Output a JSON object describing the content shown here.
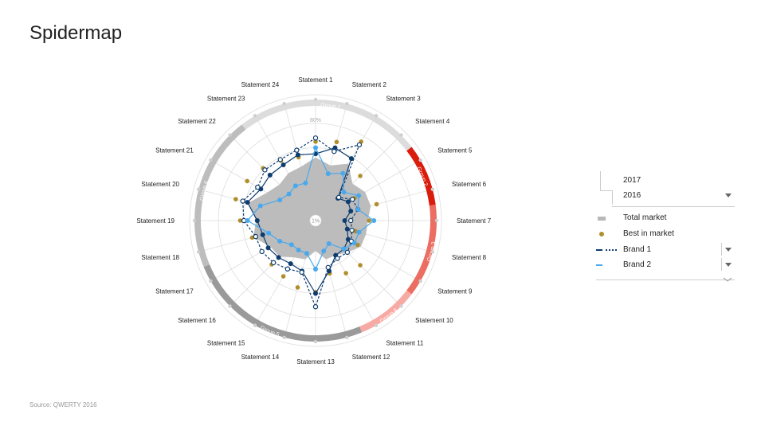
{
  "page": {
    "title": "Spidermap",
    "source": "Source: QWERTY 2016"
  },
  "controls": {
    "year_options": [
      "2017",
      "2016"
    ],
    "selected_year": "2016"
  },
  "legend": {
    "items": [
      {
        "label": "Total market",
        "kind": "area",
        "color": "#b8b8b8"
      },
      {
        "label": "Best in market",
        "kind": "dot",
        "color": "#b08f2a"
      },
      {
        "label": "Brand 1",
        "kind": "line-dual",
        "color": "#0d3c6e"
      },
      {
        "label": "Brand 2",
        "kind": "line",
        "color": "#4aa8ec"
      }
    ]
  },
  "chart_data": {
    "type": "radar",
    "title": "Spidermap",
    "scale_max_label": "80%",
    "scale_min_label": "1%",
    "rmax": 80,
    "categories": [
      "Statement 1",
      "Statement 2",
      "Statement 3",
      "Statement 4",
      "Statement 5",
      "Statement 6",
      "Statement 7",
      "Statement 8",
      "Statement 9",
      "Statement 10",
      "Statement 11",
      "Statement 12",
      "Statement 13",
      "Statement 14",
      "Statement 15",
      "Statement 16",
      "Statement 17",
      "Statement 18",
      "Statement 19",
      "Statement 20",
      "Statement 21",
      "Statement 22",
      "Statement 23",
      "Statement 24"
    ],
    "groups": [
      {
        "name": "Group 1",
        "start": 21.5,
        "end": 3.5,
        "color": "#dcdcdc",
        "label_color": "#ffffff"
      },
      {
        "name": "Group 2",
        "start": 3.5,
        "end": 5.5,
        "color": "#d91c0c",
        "label_color": "#ffffff"
      },
      {
        "name": "Group 3",
        "start": 5.5,
        "end": 8.5,
        "color": "#ec6d62",
        "label_color": "#ffffff"
      },
      {
        "name": "Group 4",
        "start": 8.5,
        "end": 10.5,
        "color": "#f7aaa3",
        "label_color": "#ffffff"
      },
      {
        "name": "Group 5",
        "start": 10.5,
        "end": 16.5,
        "color": "#9a9a9a",
        "label_color": "#ffffff"
      },
      {
        "name": "Group 6",
        "start": 16.5,
        "end": 21.5,
        "color": "#bdbdbd",
        "label_color": "#ffffff"
      }
    ],
    "series": [
      {
        "name": "Total market",
        "type": "area",
        "color": "#b8b8b8",
        "values": [
          52,
          47,
          54,
          43,
          47,
          47,
          43,
          43,
          43,
          37,
          33,
          33,
          25,
          33,
          35,
          42,
          43,
          53,
          49,
          57,
          46,
          42,
          45,
          46
        ]
      },
      {
        "name": "Best in market",
        "type": "dots",
        "color": "#b08f2a",
        "values": [
          65,
          67,
          75,
          52,
          37,
          52,
          44,
          34,
          40,
          52,
          50,
          45,
          59,
          57,
          53,
          51,
          51,
          54,
          62,
          68,
          65,
          61,
          57,
          54
        ]
      },
      {
        "name": "Brand 1",
        "year": "2017",
        "type": "line",
        "style": "solid",
        "color": "#0d3c6e",
        "values": [
          55,
          62,
          59,
          26,
          31,
          30,
          24,
          27,
          31,
          33,
          33,
          43,
          60,
          43,
          41,
          43,
          45,
          45,
          48,
          58,
          52,
          53,
          53,
          56
        ]
      },
      {
        "name": "Brand 1",
        "year": "2016",
        "type": "line",
        "style": "dashed",
        "color": "#0d3c6e",
        "values": [
          68,
          59,
          72,
          27,
          35,
          36,
          29,
          31,
          34,
          37,
          36,
          40,
          71,
          44,
          46,
          49,
          51,
          51,
          59,
          62,
          55,
          59,
          58,
          60
        ]
      },
      {
        "name": "Brand 2",
        "type": "line",
        "style": "solid",
        "color": "#4aa8ec",
        "values": [
          60,
          40,
          45,
          33,
          41,
          36,
          48,
          37,
          37,
          33,
          22,
          26,
          40,
          28,
          28,
          28,
          34,
          40,
          56,
          47,
          34,
          31,
          33,
          32
        ]
      }
    ]
  }
}
